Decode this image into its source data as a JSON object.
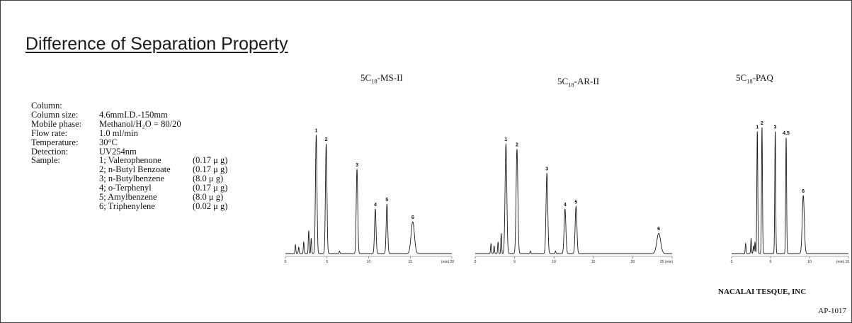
{
  "title": "Difference of Separation Property",
  "conditions": [
    {
      "label": "Column:",
      "value": ""
    },
    {
      "label": "Column size:",
      "value": "4.6mmI.D.-150mm"
    },
    {
      "label": "Mobile phase:",
      "value": "Methanol/H₂O = 80/20"
    },
    {
      "label": "Flow rate:",
      "value": "1.0 ml/min"
    },
    {
      "label": "Temperature:",
      "value": "30°C"
    },
    {
      "label": "Detection:",
      "value": "UV254nm"
    },
    {
      "label": "Sample:",
      "value": ""
    }
  ],
  "samples": [
    {
      "name": "1; Valerophenone",
      "amount": "(0.17 μ g)"
    },
    {
      "name": "2; n-Butyl Benzoate",
      "amount": "(0.17 μ g)"
    },
    {
      "name": "3; n-Butylbenzene",
      "amount": "(8.0 μ g)"
    },
    {
      "name": "4; o-Terphenyl",
      "amount": "(0.17 μ g)"
    },
    {
      "name": "5; Amylbenzene",
      "amount": "(8.0 μ g)"
    },
    {
      "name": "6; Triphenylene",
      "amount": "(0.02 μ g)"
    }
  ],
  "columns": [
    {
      "prefix": "5C",
      "sub": "18",
      "suffix": "-MS-II"
    },
    {
      "prefix": "5C",
      "sub": "18",
      "suffix": "-AR-II"
    },
    {
      "prefix": "5C",
      "sub": "18",
      "suffix": "-PAQ"
    }
  ],
  "footer": {
    "company": "NACALAI TESQUE, INC",
    "doc_number": "AP-1017"
  },
  "chart_data": [
    {
      "type": "line",
      "title": "5C18-MS-II",
      "xlabel": "(min)",
      "xlim": [
        0,
        20
      ],
      "x_ticks": [
        "0",
        "5",
        "10",
        "15",
        "(min) 20"
      ],
      "ylim": [
        0,
        1
      ],
      "grid": false,
      "peaks": [
        {
          "label": "1",
          "x": 3.7,
          "height": 0.93
        },
        {
          "label": "2",
          "x": 4.9,
          "height": 0.86
        },
        {
          "label": "3",
          "x": 8.6,
          "height": 0.66
        },
        {
          "label": "4",
          "x": 10.8,
          "height": 0.35
        },
        {
          "label": "5",
          "x": 12.2,
          "height": 0.39
        },
        {
          "label": "6",
          "x": 15.3,
          "height": 0.25
        }
      ]
    },
    {
      "type": "line",
      "title": "5C18-AR-II",
      "xlabel": "(min)",
      "xlim": [
        0,
        25
      ],
      "x_ticks": [
        "0",
        "5",
        "10",
        "15",
        "20",
        "25 (min)"
      ],
      "ylim": [
        0,
        1
      ],
      "grid": false,
      "peaks": [
        {
          "label": "1",
          "x": 3.9,
          "height": 0.86
        },
        {
          "label": "2",
          "x": 5.3,
          "height": 0.82
        },
        {
          "label": "3",
          "x": 9.1,
          "height": 0.63
        },
        {
          "label": "4",
          "x": 11.4,
          "height": 0.35
        },
        {
          "label": "5",
          "x": 12.8,
          "height": 0.37
        },
        {
          "label": "6",
          "x": 23.3,
          "height": 0.16
        }
      ]
    },
    {
      "type": "line",
      "title": "5C18-PAQ",
      "xlabel": "(min)",
      "xlim": [
        0,
        15
      ],
      "x_ticks": [
        "0",
        "5",
        "10",
        "(min) 15"
      ],
      "ylim": [
        0,
        1
      ],
      "grid": false,
      "peaks": [
        {
          "label": "1",
          "x": 3.3,
          "height": 0.97
        },
        {
          "label": "2",
          "x": 3.9,
          "height": 1.0
        },
        {
          "label": "3",
          "x": 5.6,
          "height": 0.97
        },
        {
          "label": "4,5",
          "x": 7.0,
          "height": 0.92
        },
        {
          "label": "6",
          "x": 9.2,
          "height": 0.46
        }
      ]
    }
  ]
}
